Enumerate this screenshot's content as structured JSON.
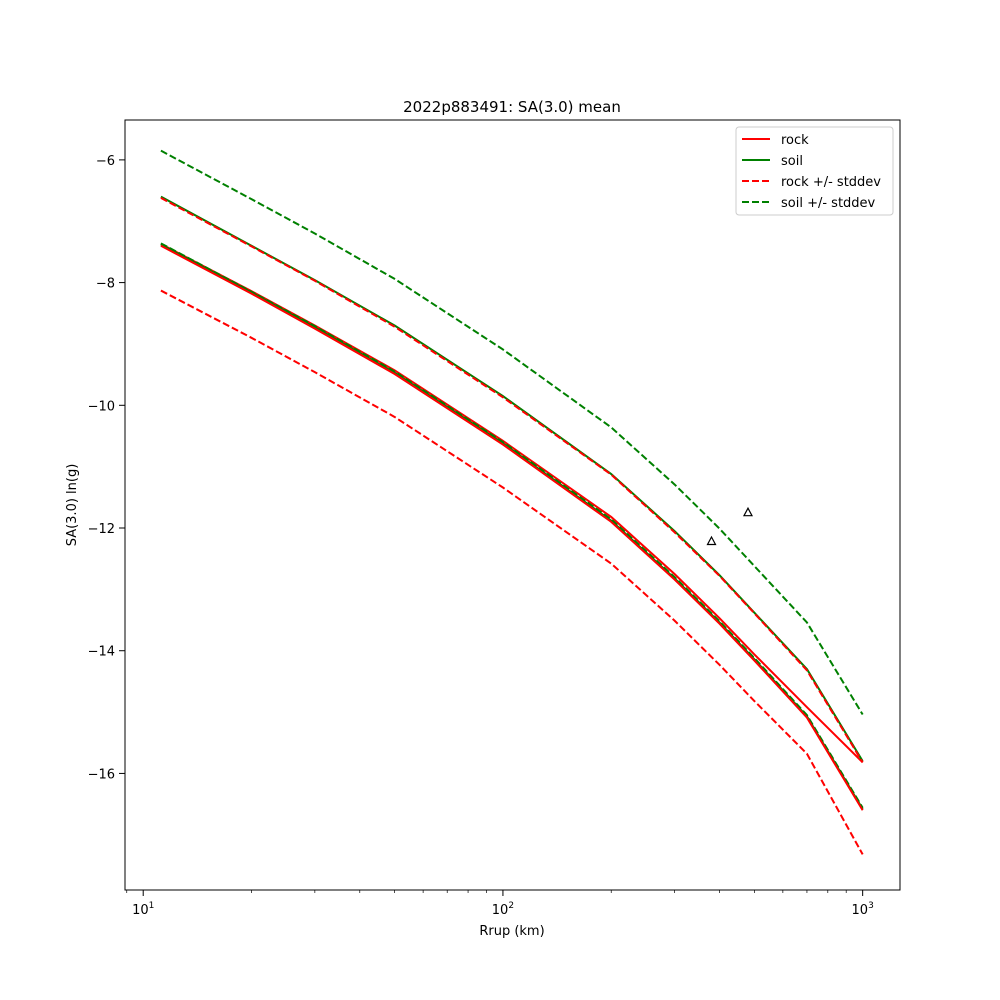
{
  "chart_data": {
    "type": "line",
    "title": "2022p883491: SA(3.0) mean",
    "xlabel": "Rrup (km)",
    "ylabel": "SA(3.0) ln(g)",
    "xscale": "log",
    "xlim": [
      8.9,
      1270
    ],
    "ylim": [
      -17.9,
      -5.35
    ],
    "grid": false,
    "legend_position": "top-right",
    "x_ticks": [
      {
        "value": 10,
        "base": "10",
        "exp": "1"
      },
      {
        "value": 100,
        "base": "10",
        "exp": "2"
      },
      {
        "value": 1000,
        "base": "10",
        "exp": "3"
      }
    ],
    "y_ticks": [
      {
        "value": -6,
        "label": "−6"
      },
      {
        "value": -8,
        "label": "−8"
      },
      {
        "value": -10,
        "label": "−10"
      },
      {
        "value": -12,
        "label": "−12"
      },
      {
        "value": -14,
        "label": "−14"
      },
      {
        "value": -16,
        "label": "−16"
      }
    ],
    "x": [
      11.2,
      20,
      30,
      50,
      100,
      200,
      300,
      400,
      500,
      700,
      1000
    ],
    "series": [
      {
        "name": "rock",
        "color": "#ff0000",
        "style": "solid",
        "legend": true,
        "values": [
          -7.37,
          -8.14,
          -8.7,
          -9.43,
          -10.58,
          -11.82,
          -12.75,
          -13.47,
          -14.06,
          -14.92,
          -15.82
        ]
      },
      {
        "name": "soil",
        "color": "#008000",
        "style": "solid",
        "legend": true,
        "values": [
          -6.6,
          -7.4,
          -7.96,
          -8.7,
          -9.85,
          -11.12,
          -12.05,
          -12.77,
          -13.38,
          -14.3,
          -15.8
        ]
      },
      {
        "name": "rock +/- stddev",
        "color": "#ff0000",
        "style": "dashed",
        "legend": true,
        "values": [
          -8.13,
          -8.9,
          -9.46,
          -10.19,
          -11.34,
          -12.58,
          -13.51,
          -14.23,
          -14.82,
          -15.68,
          -17.32
        ]
      },
      {
        "name": "soil +/- stddev",
        "color": "#008000",
        "style": "dashed",
        "legend": true,
        "values": [
          -5.85,
          -6.64,
          -7.2,
          -7.94,
          -9.09,
          -10.36,
          -11.29,
          -12.01,
          -12.62,
          -13.54,
          -15.04
        ]
      },
      {
        "name": "",
        "color": "#ff0000",
        "style": "dashed",
        "legend": false,
        "values": [
          -6.62,
          -7.41,
          -7.97,
          -8.72,
          -9.87,
          -11.13,
          -12.07,
          -12.78,
          -13.39,
          -14.32,
          -15.82
        ]
      },
      {
        "name": "",
        "color": "#008000",
        "style": "dashed",
        "legend": false,
        "values": [
          -7.36,
          -8.15,
          -8.71,
          -9.45,
          -10.6,
          -11.86,
          -12.8,
          -13.52,
          -14.12,
          -15.05,
          -16.56
        ]
      },
      {
        "name": "",
        "color": "#008000",
        "style": "solid",
        "legend": false,
        "values": [
          -7.38,
          -8.16,
          -8.73,
          -9.47,
          -10.62,
          -11.88,
          -12.82,
          -13.54,
          -14.14,
          -15.07,
          -16.58
        ]
      },
      {
        "name": "",
        "color": "#ff0000",
        "style": "solid",
        "legend": false,
        "values": [
          -7.4,
          -8.18,
          -8.75,
          -9.49,
          -10.64,
          -11.9,
          -12.84,
          -13.56,
          -14.16,
          -15.09,
          -16.6
        ]
      }
    ],
    "observations": {
      "marker": "triangle",
      "color": "#000000",
      "points": [
        {
          "x": 380,
          "y": -12.22
        },
        {
          "x": 480,
          "y": -11.75
        }
      ]
    }
  }
}
